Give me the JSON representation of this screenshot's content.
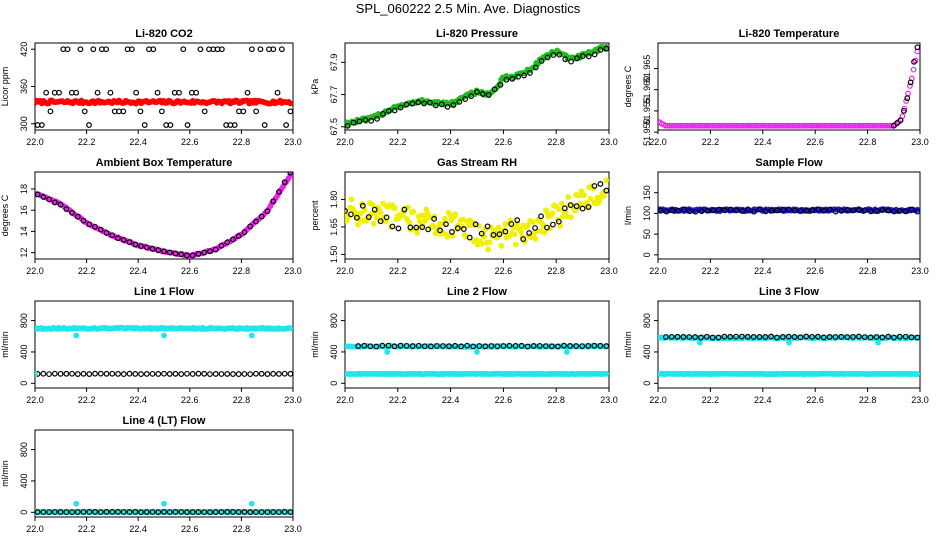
{
  "page": {
    "title": "SPL_060222  2.5 Min. Ave. Diagnostics"
  },
  "chart_data": [
    {
      "type": "scatter",
      "title": "Li-820 CO2",
      "ylabel": "Licor ppm",
      "xlim": [
        22.0,
        23.0
      ],
      "ylim": [
        290,
        430
      ],
      "xticks": [
        "22.0",
        "22.2",
        "22.4",
        "22.6",
        "22.8",
        "23.0"
      ],
      "yticks": [
        {
          "value": 300,
          "label": "300"
        },
        {
          "value": 360,
          "label": "360"
        },
        {
          "value": 420,
          "label": "420"
        }
      ],
      "series": [
        {
          "name": "avg",
          "color": "#ff0000",
          "filled": true,
          "kind": "flat",
          "x0": 22.0,
          "x1": 22.99,
          "n": 150,
          "base": 335,
          "noise": 2.5
        },
        {
          "name": "raw",
          "color": "#000000",
          "filled": false,
          "kind": "choice",
          "x0": 22.01,
          "x1": 22.99,
          "n": 60,
          "choices": [
            298,
            320,
            350,
            420
          ],
          "seed": 11
        }
      ]
    },
    {
      "type": "scatter",
      "title": "Li-820 Pressure",
      "ylabel": "kPa",
      "xlim": [
        22.0,
        23.0
      ],
      "ylim": [
        67.48,
        68.02
      ],
      "xticks": [
        "22.0",
        "22.2",
        "22.4",
        "22.6",
        "22.8",
        "23.0"
      ],
      "yticks": [
        {
          "value": 67.5,
          "label": "67.5"
        },
        {
          "value": 67.7,
          "label": "67.7"
        },
        {
          "value": 67.9,
          "label": "67.9"
        }
      ],
      "series": [
        {
          "name": "avg",
          "color": "#22bb22",
          "filled": true,
          "kind": "curve",
          "n": 150,
          "noise": 0.012,
          "knots": [
            [
              22.0,
              67.52
            ],
            [
              22.1,
              67.55
            ],
            [
              22.2,
              67.63
            ],
            [
              22.3,
              67.66
            ],
            [
              22.4,
              67.64
            ],
            [
              22.5,
              67.72
            ],
            [
              22.55,
              67.7
            ],
            [
              22.6,
              67.8
            ],
            [
              22.65,
              67.82
            ],
            [
              22.7,
              67.85
            ],
            [
              22.75,
              67.93
            ],
            [
              22.8,
              67.97
            ],
            [
              22.85,
              67.92
            ],
            [
              22.9,
              67.94
            ],
            [
              22.95,
              67.97
            ],
            [
              22.99,
              68.0
            ]
          ]
        },
        {
          "name": "raw",
          "color": "#000000",
          "filled": false,
          "kind": "curve",
          "n": 45,
          "noise": 0.01,
          "knots": [
            [
              22.01,
              67.51
            ],
            [
              22.1,
              67.54
            ],
            [
              22.2,
              67.62
            ],
            [
              22.3,
              67.65
            ],
            [
              22.4,
              67.63
            ],
            [
              22.5,
              67.71
            ],
            [
              22.55,
              67.69
            ],
            [
              22.6,
              67.79
            ],
            [
              22.65,
              67.81
            ],
            [
              22.7,
              67.84
            ],
            [
              22.75,
              67.92
            ],
            [
              22.8,
              67.95
            ],
            [
              22.85,
              67.91
            ],
            [
              22.9,
              67.93
            ],
            [
              22.95,
              67.96
            ],
            [
              22.99,
              67.98
            ]
          ]
        }
      ]
    },
    {
      "type": "scatter",
      "title": "Li-820 Temperature",
      "ylabel": "degrees C",
      "xlim": [
        22.0,
        23.0
      ],
      "ylim": [
        51.9505,
        51.971
      ],
      "xticks": [
        "22.0",
        "22.2",
        "22.4",
        "22.6",
        "22.8",
        "23.0"
      ],
      "yticks": [
        {
          "value": 51.95,
          "label": "51.950"
        },
        {
          "value": 51.955,
          "label": "51.955"
        },
        {
          "value": 51.96,
          "label": "51.960"
        },
        {
          "value": 51.965,
          "label": "51.965"
        }
      ],
      "series": [
        {
          "name": "avg",
          "color": "#ee22ee",
          "filled": false,
          "kind": "curve",
          "n": 140,
          "noise": 0.0,
          "knots": [
            [
              22.0,
              51.9525
            ],
            [
              22.03,
              51.9515
            ],
            [
              22.9,
              51.9515
            ],
            [
              22.93,
              51.953
            ],
            [
              22.95,
              51.958
            ],
            [
              22.97,
              51.963
            ],
            [
              22.99,
              51.969
            ]
          ]
        },
        {
          "name": "raw",
          "color": "#000000",
          "filled": false,
          "kind": "curve",
          "n": 8,
          "noise": 0.0,
          "knots": [
            [
              22.9,
              51.9515
            ],
            [
              22.93,
              51.953
            ],
            [
              22.96,
              51.96
            ],
            [
              22.975,
              51.966
            ],
            [
              22.99,
              51.97
            ]
          ]
        }
      ]
    },
    {
      "type": "scatter",
      "title": "Ambient Box Temperature",
      "ylabel": "degrees C",
      "xlim": [
        22.0,
        23.0
      ],
      "ylim": [
        11.4,
        19.6
      ],
      "xticks": [
        "22.0",
        "22.2",
        "22.4",
        "22.6",
        "22.8",
        "23.0"
      ],
      "yticks": [
        {
          "value": 12,
          "label": "12"
        },
        {
          "value": 14,
          "label": "14"
        },
        {
          "value": 16,
          "label": "16"
        },
        {
          "value": 18,
          "label": "18"
        }
      ],
      "series": [
        {
          "name": "avg",
          "color": "#ee22ee",
          "filled": true,
          "kind": "curve",
          "n": 140,
          "noise": 0.05,
          "knots": [
            [
              22.0,
              17.6
            ],
            [
              22.1,
              16.6
            ],
            [
              22.2,
              14.8
            ],
            [
              22.3,
              13.6
            ],
            [
              22.4,
              12.7
            ],
            [
              22.5,
              12.1
            ],
            [
              22.6,
              11.7
            ],
            [
              22.7,
              12.3
            ],
            [
              22.8,
              13.7
            ],
            [
              22.9,
              15.9
            ],
            [
              22.99,
              19.3
            ]
          ]
        },
        {
          "name": "raw",
          "color": "#000000",
          "filled": false,
          "kind": "curve",
          "n": 45,
          "noise": 0.04,
          "knots": [
            [
              22.01,
              17.5
            ],
            [
              22.1,
              16.5
            ],
            [
              22.2,
              14.8
            ],
            [
              22.3,
              13.6
            ],
            [
              22.4,
              12.7
            ],
            [
              22.5,
              12.1
            ],
            [
              22.6,
              11.7
            ],
            [
              22.7,
              12.3
            ],
            [
              22.8,
              13.7
            ],
            [
              22.9,
              15.9
            ],
            [
              22.99,
              19.5
            ]
          ]
        }
      ]
    },
    {
      "type": "scatter",
      "title": "Gas Stream RH",
      "ylabel": "percent",
      "xlim": [
        22.0,
        23.0
      ],
      "ylim": [
        1.475,
        1.95
      ],
      "xticks": [
        "22.0",
        "22.2",
        "22.4",
        "22.6",
        "22.8",
        "23.0"
      ],
      "yticks": [
        {
          "value": 1.5,
          "label": "1.50"
        },
        {
          "value": 1.65,
          "label": "1.65"
        },
        {
          "value": 1.8,
          "label": "1.80"
        }
      ],
      "series": [
        {
          "name": "avg",
          "color": "#f0f000",
          "filled": true,
          "kind": "curve",
          "n": 200,
          "noise": 0.07,
          "knots": [
            [
              22.0,
              1.74
            ],
            [
              22.2,
              1.7
            ],
            [
              22.4,
              1.66
            ],
            [
              22.55,
              1.59
            ],
            [
              22.7,
              1.64
            ],
            [
              22.8,
              1.71
            ],
            [
              22.9,
              1.8
            ],
            [
              22.99,
              1.84
            ]
          ]
        },
        {
          "name": "raw",
          "color": "#000000",
          "filled": false,
          "kind": "curve",
          "n": 45,
          "noise": 0.06,
          "knots": [
            [
              22.0,
              1.75
            ],
            [
              22.2,
              1.7
            ],
            [
              22.4,
              1.66
            ],
            [
              22.55,
              1.6
            ],
            [
              22.7,
              1.64
            ],
            [
              22.8,
              1.72
            ],
            [
              22.9,
              1.8
            ],
            [
              22.99,
              1.85
            ]
          ]
        }
      ]
    },
    {
      "type": "scatter",
      "title": "Sample Flow",
      "ylabel": "l/min",
      "xlim": [
        22.0,
        23.0
      ],
      "ylim": [
        -10,
        200
      ],
      "xticks": [
        "22.0",
        "22.2",
        "22.4",
        "22.6",
        "22.8",
        "23.0"
      ],
      "yticks": [
        {
          "value": 0,
          "label": "0"
        },
        {
          "value": 50,
          "label": "50"
        },
        {
          "value": 100,
          "label": "100"
        },
        {
          "value": 150,
          "label": "150"
        }
      ],
      "series": [
        {
          "name": "avg",
          "color": "#1a1acc",
          "filled": true,
          "kind": "flat",
          "x0": 22.0,
          "x1": 22.99,
          "n": 160,
          "base": 108,
          "noise": 2.5
        },
        {
          "name": "raw",
          "color": "#000000",
          "filled": false,
          "kind": "flat",
          "x0": 22.01,
          "x1": 22.99,
          "n": 45,
          "base": 107,
          "noise": 3
        }
      ]
    },
    {
      "type": "scatter",
      "title": "Line 1 Flow",
      "ylabel": "ml/min",
      "xlim": [
        22.0,
        23.0
      ],
      "ylim": [
        -60,
        1050
      ],
      "xticks": [
        "22.0",
        "22.2",
        "22.4",
        "22.6",
        "22.8",
        "23.0"
      ],
      "yticks": [
        {
          "value": 0,
          "label": "0"
        },
        {
          "value": 400,
          "label": "400"
        },
        {
          "value": 800,
          "label": "800"
        }
      ],
      "series": [
        {
          "name": "avg",
          "color": "#22e5ee",
          "filled": true,
          "kind": "flat",
          "x0": 22.0,
          "x1": 22.99,
          "n": 170,
          "base": 700,
          "noise": 8,
          "outliers": [
            [
              22.16,
              610
            ],
            [
              22.5,
              610
            ],
            [
              22.84,
              610
            ]
          ]
        },
        {
          "name": "raw",
          "color": "#000000",
          "filled": false,
          "kind": "flat",
          "x0": 22.01,
          "x1": 22.99,
          "n": 45,
          "base": 120,
          "noise": 3
        },
        {
          "name": "avg2",
          "color": "#22e5ee",
          "filled": true,
          "kind": "flat",
          "x0": 22.0,
          "x1": 22.0,
          "n": 1,
          "base": 120,
          "noise": 0
        }
      ]
    },
    {
      "type": "scatter",
      "title": "Line 2 Flow",
      "ylabel": "ml/min",
      "xlim": [
        22.0,
        23.0
      ],
      "ylim": [
        -60,
        1050
      ],
      "xticks": [
        "22.0",
        "22.2",
        "22.4",
        "22.6",
        "22.8",
        "23.0"
      ],
      "yticks": [
        {
          "value": 0,
          "label": "0"
        },
        {
          "value": 400,
          "label": "400"
        },
        {
          "value": 800,
          "label": "800"
        }
      ],
      "series": [
        {
          "name": "avg",
          "color": "#22e5ee",
          "filled": true,
          "kind": "flat",
          "x0": 22.0,
          "x1": 22.99,
          "n": 170,
          "base": 120,
          "noise": 3
        },
        {
          "name": "avg-high",
          "color": "#22e5ee",
          "filled": true,
          "kind": "flat",
          "x0": 22.0,
          "x1": 22.99,
          "n": 120,
          "base": 470,
          "noise": 6,
          "outliers": [
            [
              22.16,
              400
            ],
            [
              22.5,
              400
            ],
            [
              22.84,
              400
            ]
          ]
        },
        {
          "name": "raw",
          "color": "#000000",
          "filled": false,
          "kind": "flat",
          "x0": 22.05,
          "x1": 22.99,
          "n": 42,
          "base": 475,
          "noise": 6
        }
      ]
    },
    {
      "type": "scatter",
      "title": "Line 3 Flow",
      "ylabel": "ml/min",
      "xlim": [
        22.0,
        23.0
      ],
      "ylim": [
        -60,
        1050
      ],
      "xticks": [
        "22.0",
        "22.2",
        "22.4",
        "22.6",
        "22.8",
        "23.0"
      ],
      "yticks": [
        {
          "value": 0,
          "label": "0"
        },
        {
          "value": 400,
          "label": "400"
        },
        {
          "value": 800,
          "label": "800"
        }
      ],
      "series": [
        {
          "name": "avg",
          "color": "#22e5ee",
          "filled": true,
          "kind": "flat",
          "x0": 22.0,
          "x1": 22.99,
          "n": 170,
          "base": 120,
          "noise": 3
        },
        {
          "name": "avg-high",
          "color": "#22e5ee",
          "filled": true,
          "kind": "flat",
          "x0": 22.0,
          "x1": 22.99,
          "n": 130,
          "base": 580,
          "noise": 8,
          "outliers": [
            [
              22.16,
              520
            ],
            [
              22.5,
              520
            ],
            [
              22.84,
              520
            ]
          ]
        },
        {
          "name": "raw",
          "color": "#000000",
          "filled": false,
          "kind": "flat",
          "x0": 22.03,
          "x1": 22.99,
          "n": 44,
          "base": 590,
          "noise": 7
        }
      ]
    },
    {
      "type": "scatter",
      "title": "Line 4 (LT) Flow",
      "ylabel": "ml/min",
      "xlim": [
        22.0,
        23.0
      ],
      "ylim": [
        -60,
        1050
      ],
      "xticks": [
        "22.0",
        "22.2",
        "22.4",
        "22.6",
        "22.8",
        "23.0"
      ],
      "yticks": [
        {
          "value": 0,
          "label": "0"
        },
        {
          "value": 400,
          "label": "400"
        },
        {
          "value": 800,
          "label": "800"
        }
      ],
      "series": [
        {
          "name": "avg",
          "color": "#22e5ee",
          "filled": true,
          "kind": "flat",
          "x0": 22.0,
          "x1": 22.99,
          "n": 170,
          "base": 5,
          "noise": 2,
          "outliers": [
            [
              22.16,
              110
            ],
            [
              22.5,
              110
            ],
            [
              22.84,
              110
            ]
          ]
        },
        {
          "name": "raw",
          "color": "#000000",
          "filled": false,
          "kind": "flat",
          "x0": 22.01,
          "x1": 22.99,
          "n": 45,
          "base": 3,
          "noise": 2
        }
      ]
    }
  ]
}
